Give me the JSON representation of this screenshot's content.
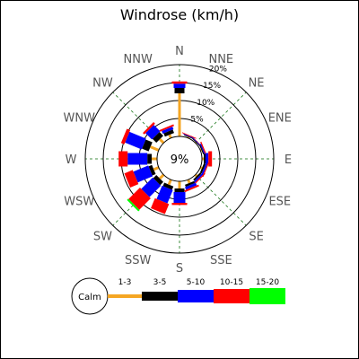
{
  "chart_data": {
    "type": "windrose",
    "title": "Windrose (km/h)",
    "calm_percent": "9%",
    "ring_labels": [
      "5%",
      "10%",
      "15%",
      "20%"
    ],
    "rings": [
      5,
      10,
      15,
      20
    ],
    "directions": [
      "N",
      "NNE",
      "NE",
      "ENE",
      "E",
      "ESE",
      "SE",
      "SSE",
      "S",
      "SSW",
      "SW",
      "WSW",
      "W",
      "WNW",
      "NW",
      "NNW"
    ],
    "speed_bins": [
      {
        "label": "1-3",
        "color": "#f5a623"
      },
      {
        "label": "3-5",
        "color": "#000000"
      },
      {
        "label": "5-10",
        "color": "#0000ff"
      },
      {
        "label": "10-15",
        "color": "#ff0000"
      },
      {
        "label": "15-20",
        "color": "#00ff00"
      }
    ],
    "calm_label": "Calm",
    "series": [
      {
        "name": "1-3",
        "values": [
          12.0,
          0.3,
          0.2,
          0.3,
          0.5,
          0.5,
          0.5,
          1.0,
          2.0,
          1.5,
          1.5,
          1.5,
          1.5,
          2.5,
          1.5,
          1.0
        ]
      },
      {
        "name": "3-5",
        "values": [
          1.5,
          0.2,
          0.2,
          0.3,
          0.5,
          0.5,
          0.5,
          0.6,
          1.0,
          1.0,
          1.2,
          1.0,
          1.2,
          2.0,
          1.5,
          1.0
        ]
      },
      {
        "name": "5-10",
        "values": [
          1.2,
          0.2,
          0.2,
          0.3,
          0.8,
          0.5,
          0.5,
          0.8,
          3.0,
          4.0,
          4.5,
          4.5,
          5.5,
          5.0,
          2.5,
          0.8
        ]
      },
      {
        "name": "10-15",
        "values": [
          0.6,
          0.2,
          0.1,
          0.3,
          1.0,
          0.3,
          0.3,
          0.5,
          0.6,
          3.0,
          4.5,
          2.5,
          2.5,
          1.0,
          0.6,
          0.5
        ]
      },
      {
        "name": "15-20",
        "values": [
          0.0,
          0.0,
          0.0,
          0.0,
          0.0,
          0.0,
          0.0,
          0.0,
          0.0,
          0.0,
          0.5,
          0.0,
          0.0,
          0.0,
          0.0,
          0.0
        ]
      }
    ]
  }
}
